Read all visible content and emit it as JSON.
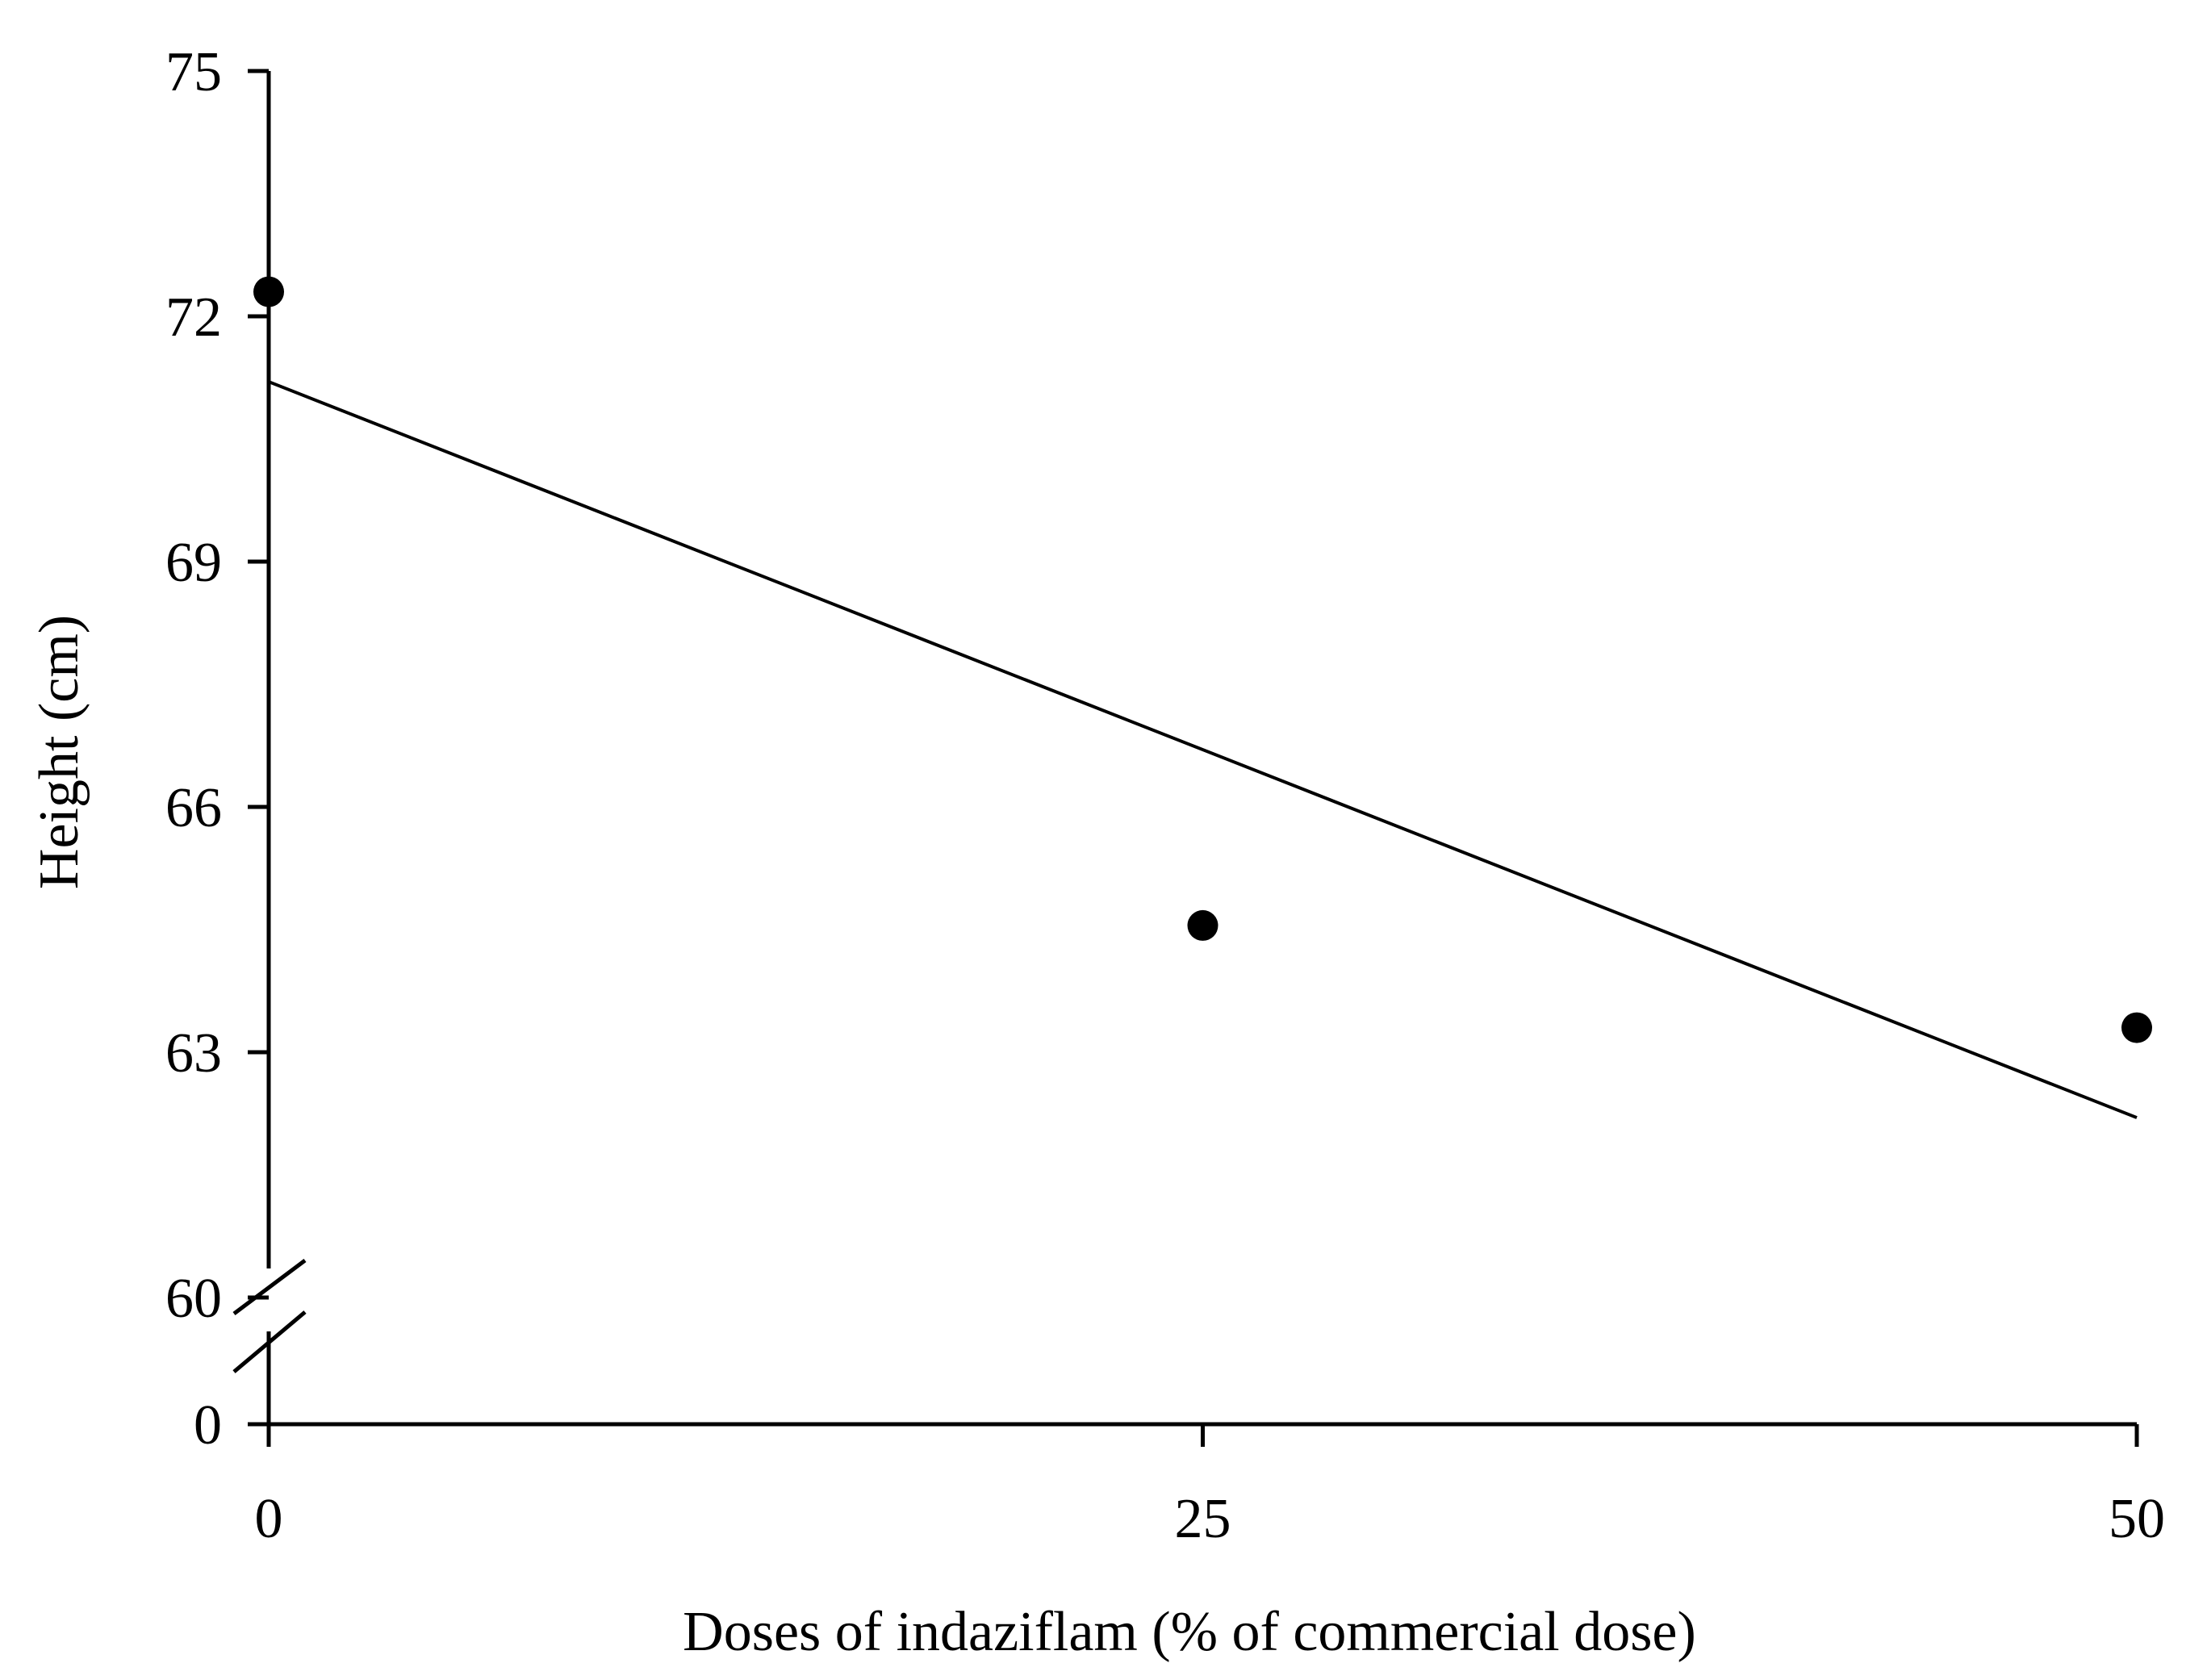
{
  "chart_data": {
    "type": "scatter",
    "xlabel": "Doses of  indaziflam (% of commercial dose)",
    "ylabel": "Height (cm)",
    "x_ticks": [
      0,
      25,
      50
    ],
    "y_ticks": [
      0,
      60,
      63,
      66,
      69,
      72,
      75
    ],
    "xlim": [
      0,
      50
    ],
    "ylim": [
      60,
      75
    ],
    "y_axis_break": true,
    "grid": false,
    "legend": "none",
    "series": [
      {
        "type": "scatter",
        "marker": "filled-circle",
        "x": [
          0,
          25,
          50
        ],
        "y": [
          72.3,
          64.55,
          63.3
        ]
      },
      {
        "type": "line",
        "x": [
          0,
          50
        ],
        "y": [
          71.2,
          62.2
        ]
      }
    ],
    "colors": {
      "marks": "#000000",
      "background": "#ffffff"
    }
  }
}
